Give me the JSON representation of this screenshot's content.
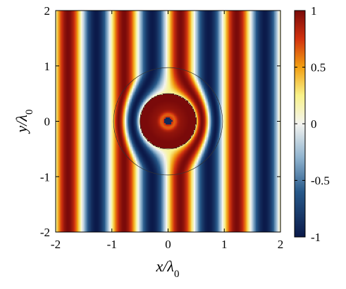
{
  "chart_data": {
    "type": "heatmap",
    "title": "",
    "field": "cos(2*pi*(x - phase))/ field normalized to [-1, 1]",
    "xlabel": {
      "var": "x/λ",
      "sub": "0"
    },
    "ylabel": {
      "var": "y/λ",
      "sub": "0"
    },
    "xlim": [
      -2,
      2
    ],
    "ylim": [
      -2,
      2
    ],
    "xticks": [
      -2,
      -1,
      0,
      1,
      2
    ],
    "yticks": [
      -2,
      -1,
      0,
      1,
      2
    ],
    "xtick_labels": [
      "-2",
      "-1",
      "0",
      "1",
      "2"
    ],
    "ytick_labels": [
      "-2",
      "-1",
      "0",
      "1",
      "2"
    ],
    "wavelength": 1,
    "phase_offset": 0.22,
    "cloak_outer_radius": 0.97,
    "cloak_inner_radius": 0.5,
    "core_radius": 0.07,
    "colorbar": {
      "range": [
        -1,
        1
      ],
      "ticks": [
        1,
        0.5,
        0,
        -0.5,
        -1
      ],
      "tick_labels": [
        "1",
        "0.5",
        "0",
        "-0.5",
        "-1"
      ],
      "colormap": [
        {
          "v": -1.0,
          "color": "#0b1a4a"
        },
        {
          "v": -0.6,
          "color": "#27598a"
        },
        {
          "v": -0.3,
          "color": "#8fb3cf"
        },
        {
          "v": 0.0,
          "color": "#f4f4f0"
        },
        {
          "v": 0.25,
          "color": "#f8f28a"
        },
        {
          "v": 0.5,
          "color": "#f2a012"
        },
        {
          "v": 0.75,
          "color": "#d2320f"
        },
        {
          "v": 1.0,
          "color": "#7a0a0a"
        }
      ]
    }
  }
}
